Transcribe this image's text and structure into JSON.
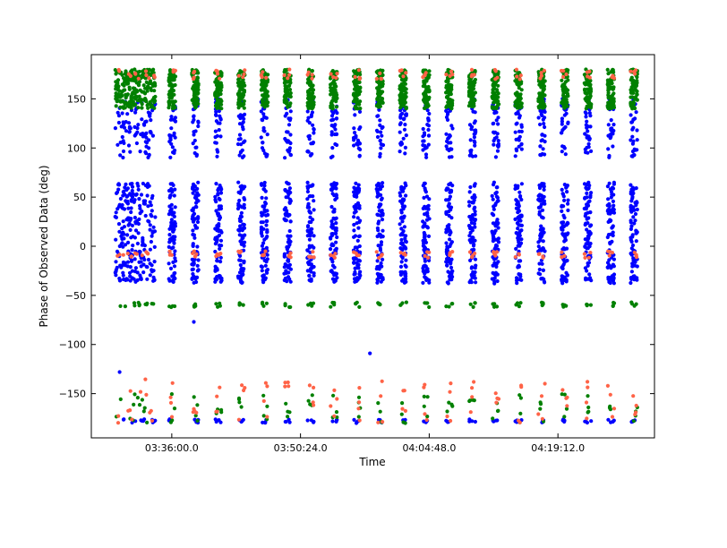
{
  "chart_data": {
    "type": "scatter",
    "title": "",
    "xlabel": "Time",
    "ylabel": "Phase of Observed Data  (deg)",
    "x_tick_labels": [
      "03:36:00.0",
      "03:50:24.0",
      "04:04:48.0",
      "04:19:12.0"
    ],
    "x_tick_seconds": [
      12960,
      13824,
      14688,
      15552
    ],
    "xlim_seconds": [
      12420,
      16200
    ],
    "ylim": [
      -195,
      195
    ],
    "y_ticks": [
      -150,
      -100,
      -50,
      0,
      50,
      100,
      150
    ],
    "grid": false,
    "legend": "none",
    "colors": {
      "blue": "#0000ff",
      "green": "#008000",
      "orange": "#ff6347",
      "axis": "#000000"
    },
    "scans": [
      {
        "t_start": 12580,
        "t_end": 12850
      },
      {
        "t_start": 12940,
        "t_end": 12985
      },
      {
        "t_start": 13095,
        "t_end": 13140
      },
      {
        "t_start": 13250,
        "t_end": 13295
      },
      {
        "t_start": 13405,
        "t_end": 13450
      },
      {
        "t_start": 13560,
        "t_end": 13605
      },
      {
        "t_start": 13715,
        "t_end": 13760
      },
      {
        "t_start": 13870,
        "t_end": 13915
      },
      {
        "t_start": 14025,
        "t_end": 14070
      },
      {
        "t_start": 14180,
        "t_end": 14225
      },
      {
        "t_start": 14335,
        "t_end": 14380
      },
      {
        "t_start": 14490,
        "t_end": 14535
      },
      {
        "t_start": 14645,
        "t_end": 14690
      },
      {
        "t_start": 14800,
        "t_end": 14845
      },
      {
        "t_start": 14955,
        "t_end": 15000
      },
      {
        "t_start": 15110,
        "t_end": 15155
      },
      {
        "t_start": 15265,
        "t_end": 15310
      },
      {
        "t_start": 15420,
        "t_end": 15465
      },
      {
        "t_start": 15575,
        "t_end": 15620
      },
      {
        "t_start": 15730,
        "t_end": 15775
      },
      {
        "t_start": 15885,
        "t_end": 15930
      },
      {
        "t_start": 16040,
        "t_end": 16085
      }
    ],
    "series": [
      {
        "color": "blue",
        "phase_bands": [
          {
            "y_min": -35,
            "y_max": 65,
            "density": "high"
          },
          {
            "y_min": 90,
            "y_max": 150,
            "density": "medium"
          },
          {
            "y_min": -38,
            "y_max": -32,
            "density": "low"
          },
          {
            "y_min": -180,
            "y_max": -176,
            "density": "low"
          }
        ],
        "outliers": [
          {
            "t": 13108,
            "y": -77
          },
          {
            "t": 14290,
            "y": -109
          },
          {
            "t": 12610,
            "y": -128
          }
        ]
      },
      {
        "color": "green",
        "phase_bands": [
          {
            "y_min": 140,
            "y_max": 180,
            "density": "high"
          },
          {
            "y_min": -62,
            "y_max": -57,
            "density": "low"
          },
          {
            "y_min": -180,
            "y_max": -150,
            "density": "low"
          }
        ]
      },
      {
        "color": "orange",
        "phase_bands": [
          {
            "y_min": 170,
            "y_max": 180,
            "density": "low"
          },
          {
            "y_min": -12,
            "y_max": -5,
            "density": "low"
          },
          {
            "y_min": -180,
            "y_max": -135,
            "density": "low"
          }
        ]
      }
    ]
  }
}
